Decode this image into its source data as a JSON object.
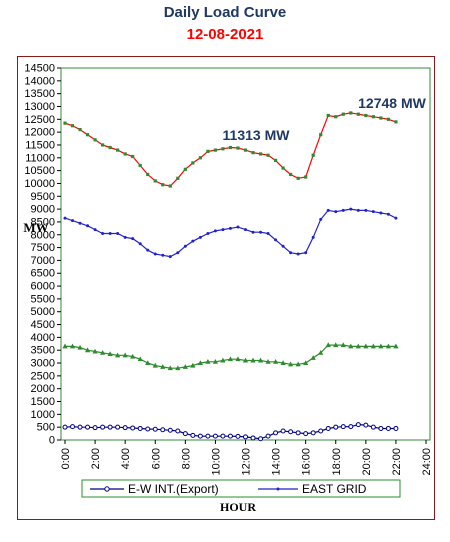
{
  "header": {
    "title": "Daily Load Curve",
    "date": "12-08-2021"
  },
  "chart_data": {
    "type": "line",
    "xlabel": "HOUR",
    "ylabel": "MW",
    "ylim": [
      0,
      14500
    ],
    "y_ticks": [
      0,
      500,
      1000,
      1500,
      2000,
      2500,
      3000,
      3500,
      4000,
      4500,
      5000,
      5500,
      6000,
      6500,
      7000,
      7500,
      8000,
      8500,
      9000,
      9500,
      10000,
      10500,
      11000,
      11500,
      12000,
      12500,
      13000,
      13500,
      14000,
      14500
    ],
    "x_ticks": [
      "0:00",
      "2:00",
      "4:00",
      "6:00",
      "8:00",
      "10:00",
      "12:00",
      "14:00",
      "16:00",
      "18:00",
      "20:00",
      "22:00",
      "24:00"
    ],
    "x_range": [
      0,
      24
    ],
    "x_step": 0.5,
    "series": [
      {
        "name": "",
        "color": "#ff0000",
        "marker": "square",
        "marker_color": "#2e8b2e",
        "values": [
          12350,
          12250,
          12100,
          11900,
          11700,
          11500,
          11400,
          11300,
          11150,
          11050,
          10700,
          10350,
          10100,
          9950,
          9900,
          10200,
          10550,
          10800,
          11000,
          11250,
          11300,
          11350,
          11400,
          11380,
          11300,
          11200,
          11150,
          11100,
          10900,
          10600,
          10350,
          10200,
          10250,
          11100,
          11900,
          12650,
          12600,
          12700,
          12748,
          12700,
          12650,
          12600,
          12550,
          12500,
          12400
        ]
      },
      {
        "name": "EAST GRID",
        "color": "#2e8b2e",
        "marker": "triangle",
        "marker_color": "#2e8b2e",
        "values": [
          3650,
          3650,
          3600,
          3500,
          3450,
          3400,
          3350,
          3300,
          3300,
          3250,
          3150,
          3000,
          2900,
          2850,
          2800,
          2800,
          2850,
          2900,
          3000,
          3050,
          3050,
          3100,
          3150,
          3150,
          3100,
          3100,
          3100,
          3050,
          3050,
          3000,
          2950,
          2950,
          3000,
          3200,
          3400,
          3700,
          3700,
          3700,
          3650,
          3650,
          3650,
          3650,
          3650,
          3650,
          3650
        ]
      },
      {
        "name": "",
        "color": "#2222cc",
        "marker": "dot",
        "marker_color": "#2222cc",
        "values": [
          8650,
          8550,
          8450,
          8350,
          8200,
          8050,
          8050,
          8050,
          7900,
          7850,
          7650,
          7400,
          7250,
          7200,
          7150,
          7300,
          7550,
          7750,
          7900,
          8050,
          8150,
          8200,
          8250,
          8300,
          8200,
          8100,
          8100,
          8050,
          7800,
          7550,
          7300,
          7250,
          7300,
          7900,
          8600,
          8950,
          8900,
          8950,
          9000,
          8950,
          8950,
          8900,
          8850,
          8800,
          8650
        ]
      },
      {
        "name": "E-W INT.(Export)",
        "color": "#00008b",
        "marker": "circle-open",
        "marker_color": "#00008b",
        "values": [
          500,
          520,
          500,
          500,
          480,
          500,
          500,
          500,
          480,
          470,
          450,
          430,
          420,
          400,
          380,
          350,
          250,
          180,
          150,
          150,
          150,
          150,
          150,
          140,
          120,
          80,
          50,
          150,
          280,
          350,
          320,
          280,
          250,
          280,
          350,
          450,
          500,
          520,
          520,
          600,
          580,
          500,
          450,
          450,
          450
        ]
      }
    ],
    "annotations": [
      {
        "text": "12748 MW",
        "color": "#1f3864"
      },
      {
        "text": "11313 MW",
        "color": "#1f3864"
      }
    ],
    "legend_position": "bottom"
  }
}
